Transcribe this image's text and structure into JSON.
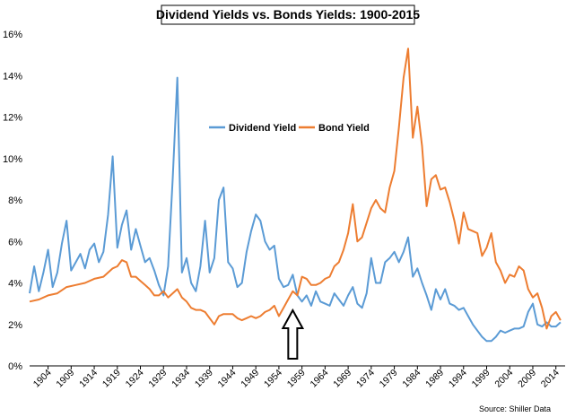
{
  "chart_data": {
    "type": "line",
    "title": "Dividend Yields vs. Bonds Yields: 1900-2015",
    "source": "Source: Shiller Data",
    "xlabel": "",
    "ylabel": "",
    "xlim": [
      1900,
      2016
    ],
    "ylim": [
      0,
      16
    ],
    "y_ticks": [
      "0%",
      "2%",
      "4%",
      "6%",
      "8%",
      "10%",
      "12%",
      "14%",
      "16%"
    ],
    "x_ticks": [
      1904,
      1909,
      1914,
      1919,
      1924,
      1929,
      1934,
      1939,
      1944,
      1949,
      1954,
      1959,
      1964,
      1969,
      1974,
      1979,
      1984,
      1989,
      1994,
      1999,
      2004,
      2009,
      2014
    ],
    "grid": false,
    "legend_position": "upper-center",
    "annotation": {
      "type": "up-arrow",
      "x": 1957
    },
    "series": [
      {
        "name": "Dividend Yield",
        "color": "#5B9BD5",
        "points": [
          [
            1900,
            3.5
          ],
          [
            1901,
            4.8
          ],
          [
            1902,
            3.6
          ],
          [
            1903,
            4.5
          ],
          [
            1904,
            5.6
          ],
          [
            1905,
            3.8
          ],
          [
            1906,
            4.5
          ],
          [
            1907,
            5.9
          ],
          [
            1908,
            7.0
          ],
          [
            1909,
            4.6
          ],
          [
            1910,
            5.0
          ],
          [
            1911,
            5.4
          ],
          [
            1912,
            4.7
          ],
          [
            1913,
            5.6
          ],
          [
            1914,
            5.9
          ],
          [
            1915,
            5.0
          ],
          [
            1916,
            5.5
          ],
          [
            1917,
            7.3
          ],
          [
            1918,
            10.1
          ],
          [
            1919,
            5.7
          ],
          [
            1920,
            6.8
          ],
          [
            1921,
            7.5
          ],
          [
            1922,
            5.6
          ],
          [
            1923,
            6.6
          ],
          [
            1924,
            5.8
          ],
          [
            1925,
            5.0
          ],
          [
            1926,
            5.2
          ],
          [
            1927,
            4.6
          ],
          [
            1928,
            3.9
          ],
          [
            1929,
            3.4
          ],
          [
            1930,
            4.8
          ],
          [
            1931,
            9.0
          ],
          [
            1932,
            13.9
          ],
          [
            1933,
            4.5
          ],
          [
            1934,
            5.2
          ],
          [
            1935,
            4.0
          ],
          [
            1936,
            3.6
          ],
          [
            1937,
            4.8
          ],
          [
            1938,
            7.0
          ],
          [
            1939,
            4.5
          ],
          [
            1940,
            5.2
          ],
          [
            1941,
            8.0
          ],
          [
            1942,
            8.6
          ],
          [
            1943,
            5.0
          ],
          [
            1944,
            4.7
          ],
          [
            1945,
            3.8
          ],
          [
            1946,
            4.0
          ],
          [
            1947,
            5.5
          ],
          [
            1948,
            6.5
          ],
          [
            1949,
            7.3
          ],
          [
            1950,
            7.0
          ],
          [
            1951,
            6.0
          ],
          [
            1952,
            5.6
          ],
          [
            1953,
            5.8
          ],
          [
            1954,
            4.2
          ],
          [
            1955,
            3.8
          ],
          [
            1956,
            3.9
          ],
          [
            1957,
            4.4
          ],
          [
            1958,
            3.4
          ],
          [
            1959,
            3.1
          ],
          [
            1960,
            3.4
          ],
          [
            1961,
            2.9
          ],
          [
            1962,
            3.6
          ],
          [
            1963,
            3.1
          ],
          [
            1964,
            3.0
          ],
          [
            1965,
            2.9
          ],
          [
            1966,
            3.5
          ],
          [
            1967,
            3.2
          ],
          [
            1968,
            2.9
          ],
          [
            1969,
            3.4
          ],
          [
            1970,
            3.8
          ],
          [
            1971,
            3.0
          ],
          [
            1972,
            2.8
          ],
          [
            1973,
            3.5
          ],
          [
            1974,
            5.2
          ],
          [
            1975,
            4.0
          ],
          [
            1976,
            4.0
          ],
          [
            1977,
            5.0
          ],
          [
            1978,
            5.2
          ],
          [
            1979,
            5.5
          ],
          [
            1980,
            5.0
          ],
          [
            1981,
            5.5
          ],
          [
            1982,
            6.2
          ],
          [
            1983,
            4.3
          ],
          [
            1984,
            4.7
          ],
          [
            1985,
            4.0
          ],
          [
            1986,
            3.4
          ],
          [
            1987,
            2.7
          ],
          [
            1988,
            3.7
          ],
          [
            1989,
            3.2
          ],
          [
            1990,
            3.7
          ],
          [
            1991,
            3.0
          ],
          [
            1992,
            2.9
          ],
          [
            1993,
            2.7
          ],
          [
            1994,
            2.8
          ],
          [
            1995,
            2.4
          ],
          [
            1996,
            2.0
          ],
          [
            1997,
            1.7
          ],
          [
            1998,
            1.4
          ],
          [
            1999,
            1.2
          ],
          [
            2000,
            1.2
          ],
          [
            2001,
            1.4
          ],
          [
            2002,
            1.7
          ],
          [
            2003,
            1.6
          ],
          [
            2004,
            1.7
          ],
          [
            2005,
            1.8
          ],
          [
            2006,
            1.8
          ],
          [
            2007,
            1.9
          ],
          [
            2008,
            2.6
          ],
          [
            2009,
            3.0
          ],
          [
            2010,
            2.0
          ],
          [
            2011,
            1.9
          ],
          [
            2012,
            2.1
          ],
          [
            2013,
            1.9
          ],
          [
            2014,
            1.9
          ],
          [
            2015,
            2.1
          ]
        ]
      },
      {
        "name": "Bond Yield",
        "color": "#ED7D31",
        "points": [
          [
            1900,
            3.1
          ],
          [
            1902,
            3.2
          ],
          [
            1904,
            3.4
          ],
          [
            1906,
            3.5
          ],
          [
            1908,
            3.8
          ],
          [
            1910,
            3.9
          ],
          [
            1912,
            4.0
          ],
          [
            1914,
            4.2
          ],
          [
            1916,
            4.3
          ],
          [
            1918,
            4.7
          ],
          [
            1919,
            4.8
          ],
          [
            1920,
            5.1
          ],
          [
            1921,
            5.0
          ],
          [
            1922,
            4.3
          ],
          [
            1923,
            4.3
          ],
          [
            1924,
            4.1
          ],
          [
            1925,
            3.9
          ],
          [
            1926,
            3.7
          ],
          [
            1927,
            3.4
          ],
          [
            1928,
            3.4
          ],
          [
            1929,
            3.6
          ],
          [
            1930,
            3.3
          ],
          [
            1931,
            3.5
          ],
          [
            1932,
            3.7
          ],
          [
            1933,
            3.3
          ],
          [
            1934,
            3.1
          ],
          [
            1935,
            2.8
          ],
          [
            1936,
            2.7
          ],
          [
            1937,
            2.7
          ],
          [
            1938,
            2.6
          ],
          [
            1939,
            2.3
          ],
          [
            1940,
            2.0
          ],
          [
            1941,
            2.4
          ],
          [
            1942,
            2.5
          ],
          [
            1943,
            2.5
          ],
          [
            1944,
            2.5
          ],
          [
            1945,
            2.3
          ],
          [
            1946,
            2.2
          ],
          [
            1947,
            2.3
          ],
          [
            1948,
            2.4
          ],
          [
            1949,
            2.3
          ],
          [
            1950,
            2.4
          ],
          [
            1951,
            2.6
          ],
          [
            1952,
            2.7
          ],
          [
            1953,
            2.9
          ],
          [
            1954,
            2.4
          ],
          [
            1955,
            2.8
          ],
          [
            1956,
            3.2
          ],
          [
            1957,
            3.6
          ],
          [
            1958,
            3.4
          ],
          [
            1959,
            4.3
          ],
          [
            1960,
            4.2
          ],
          [
            1961,
            3.9
          ],
          [
            1962,
            3.9
          ],
          [
            1963,
            4.0
          ],
          [
            1964,
            4.2
          ],
          [
            1965,
            4.3
          ],
          [
            1966,
            4.8
          ],
          [
            1967,
            5.0
          ],
          [
            1968,
            5.6
          ],
          [
            1969,
            6.4
          ],
          [
            1970,
            7.8
          ],
          [
            1971,
            6.0
          ],
          [
            1972,
            6.2
          ],
          [
            1973,
            6.9
          ],
          [
            1974,
            7.6
          ],
          [
            1975,
            8.0
          ],
          [
            1976,
            7.6
          ],
          [
            1977,
            7.4
          ],
          [
            1978,
            8.6
          ],
          [
            1979,
            9.4
          ],
          [
            1980,
            11.5
          ],
          [
            1981,
            13.9
          ],
          [
            1982,
            15.3
          ],
          [
            1983,
            11.0
          ],
          [
            1984,
            12.5
          ],
          [
            1985,
            10.6
          ],
          [
            1986,
            7.7
          ],
          [
            1987,
            9.0
          ],
          [
            1988,
            9.2
          ],
          [
            1989,
            8.5
          ],
          [
            1990,
            8.6
          ],
          [
            1991,
            7.9
          ],
          [
            1992,
            7.0
          ],
          [
            1993,
            5.9
          ],
          [
            1994,
            7.4
          ],
          [
            1995,
            6.6
          ],
          [
            1996,
            6.5
          ],
          [
            1997,
            6.4
          ],
          [
            1998,
            5.3
          ],
          [
            1999,
            5.7
          ],
          [
            2000,
            6.4
          ],
          [
            2001,
            5.0
          ],
          [
            2002,
            4.6
          ],
          [
            2003,
            4.0
          ],
          [
            2004,
            4.4
          ],
          [
            2005,
            4.3
          ],
          [
            2006,
            4.8
          ],
          [
            2007,
            4.6
          ],
          [
            2008,
            3.7
          ],
          [
            2009,
            3.3
          ],
          [
            2010,
            3.5
          ],
          [
            2011,
            2.8
          ],
          [
            2012,
            1.8
          ],
          [
            2013,
            2.4
          ],
          [
            2014,
            2.6
          ],
          [
            2015,
            2.2
          ]
        ]
      }
    ]
  }
}
